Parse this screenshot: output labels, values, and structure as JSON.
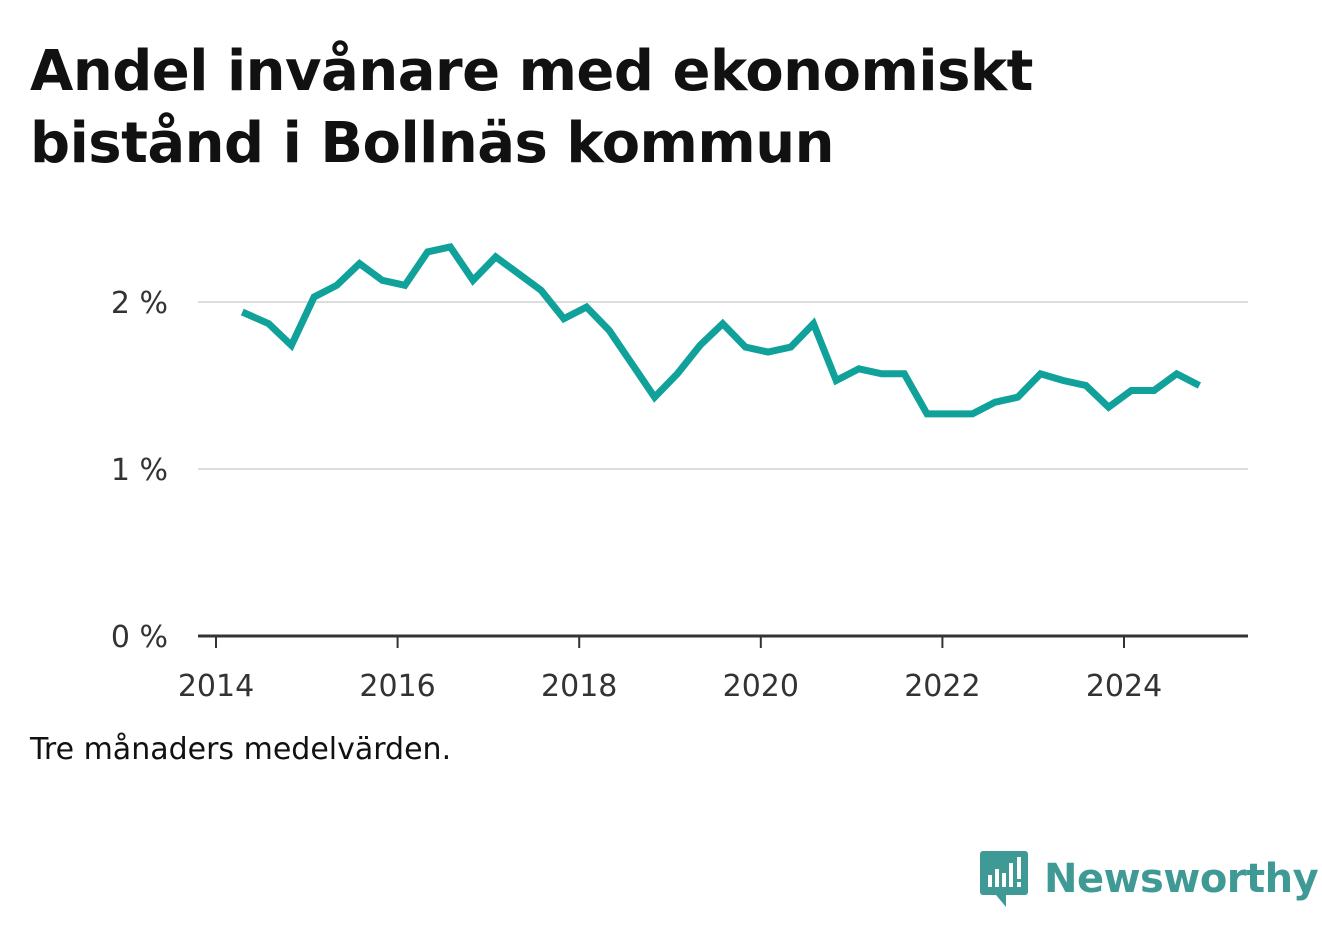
{
  "title": "Andel invånare med ekonomiskt bistånd i Bollnäs kommun",
  "note": "Tre månaders medelvärden.",
  "brand": {
    "name": "Newsworthy",
    "icon": "newsworthy-logo-icon",
    "color": "#3f9a95"
  },
  "colors": {
    "line": "#10a29a",
    "grid": "#dddddd",
    "axis": "#333333",
    "text": "#333333"
  },
  "chart_data": {
    "type": "line",
    "title": "Andel invånare med ekonomiskt bistånd i Bollnäs kommun",
    "xlabel": "",
    "ylabel": "",
    "xlim": [
      2014,
      2025.4
    ],
    "ylim": [
      0,
      2.55
    ],
    "y_ticks": [
      {
        "value": 0,
        "label": "0 %"
      },
      {
        "value": 1,
        "label": "1 %"
      },
      {
        "value": 2,
        "label": "2 %"
      }
    ],
    "x_ticks": [
      {
        "value": 2014,
        "label": "2014"
      },
      {
        "value": 2016,
        "label": "2016"
      },
      {
        "value": 2018,
        "label": "2018"
      },
      {
        "value": 2020,
        "label": "2020"
      },
      {
        "value": 2022,
        "label": "2022"
      },
      {
        "value": 2024,
        "label": "2024"
      }
    ],
    "grid": true,
    "series": [
      {
        "x": [
          2014.29,
          2014.58,
          2014.83,
          2015.08,
          2015.33,
          2015.58,
          2015.83,
          2016.08,
          2016.33,
          2016.58,
          2016.83,
          2017.08,
          2017.33,
          2017.58,
          2017.83,
          2018.08,
          2018.33,
          2018.58,
          2018.83,
          2019.08,
          2019.33,
          2019.58,
          2019.83,
          2020.08,
          2020.33,
          2020.58,
          2020.83,
          2021.08,
          2021.33,
          2021.58,
          2021.83,
          2022.08,
          2022.33,
          2022.58,
          2022.83,
          2023.08,
          2023.33,
          2023.58,
          2023.83,
          2024.08,
          2024.33,
          2024.58,
          2024.83
        ],
        "values": [
          1.94,
          1.87,
          1.74,
          2.03,
          2.1,
          2.23,
          2.13,
          2.1,
          2.3,
          2.33,
          2.13,
          2.27,
          2.17,
          2.07,
          1.9,
          1.97,
          1.83,
          1.63,
          1.43,
          1.57,
          1.74,
          1.87,
          1.73,
          1.7,
          1.73,
          1.87,
          1.53,
          1.6,
          1.57,
          1.57,
          1.33,
          1.33,
          1.33,
          1.4,
          1.43,
          1.57,
          1.53,
          1.5,
          1.37,
          1.47,
          1.47,
          1.57,
          1.5
        ]
      }
    ]
  }
}
